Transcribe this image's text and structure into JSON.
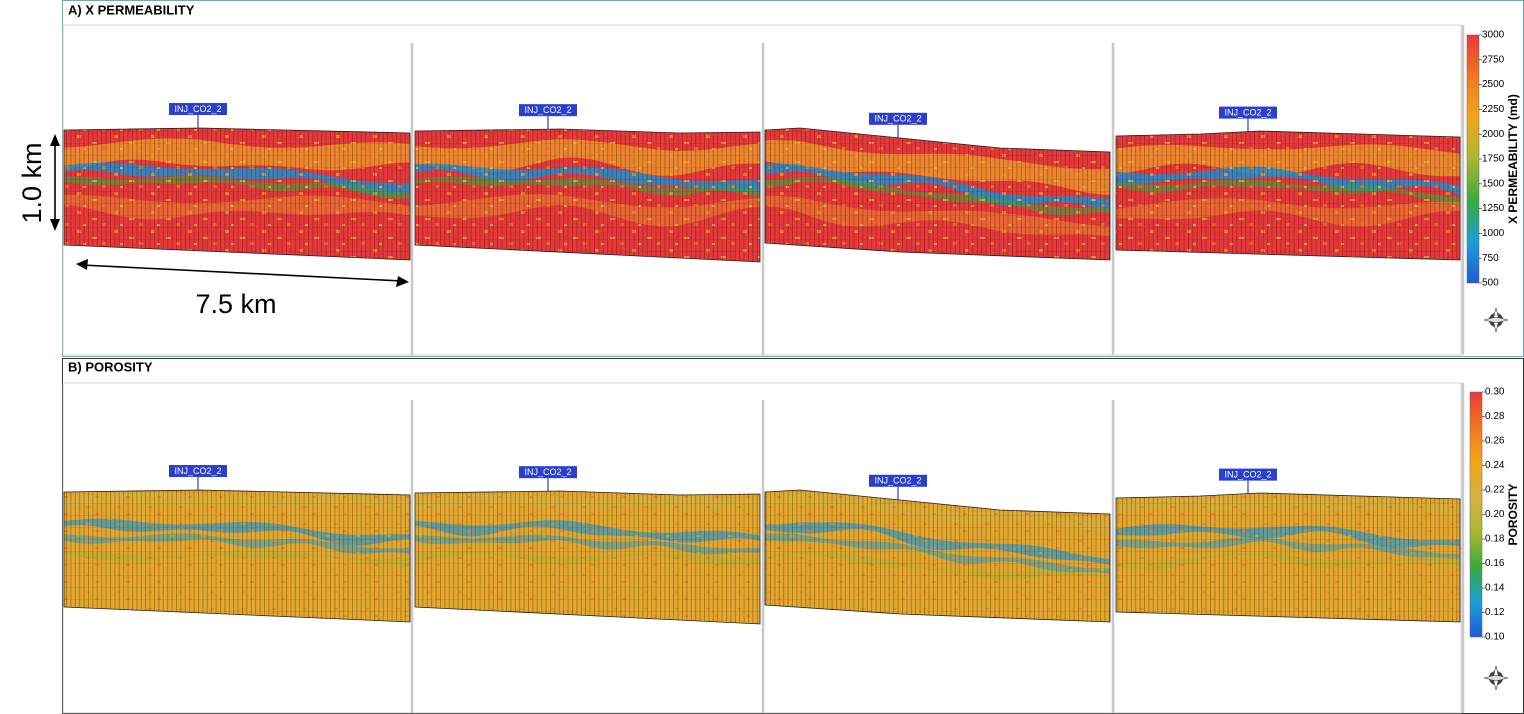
{
  "panels": [
    {
      "title": "A) X PERMEABILITY",
      "well_labels": [
        "INJ_CO2_2",
        "INJ_CO2_2",
        "INJ_CO2_2",
        "INJ_CO2_2"
      ],
      "colorbar": {
        "label": "X PERMEABILITY (md)",
        "ticks": [
          500,
          750,
          1000,
          1250,
          1500,
          1750,
          2000,
          2250,
          2500,
          2750,
          3000
        ],
        "colors": [
          "#1e5bd6",
          "#1aa0d8",
          "#3aaa3c",
          "#a9b830",
          "#f0a818",
          "#f07820",
          "#e8383a"
        ]
      }
    },
    {
      "title": "B) POROSITY",
      "well_labels": [
        "INJ_CO2_2",
        "INJ_CO2_2",
        "INJ_CO2_2",
        "INJ_CO2_2"
      ],
      "colorbar": {
        "label": "POROSITY",
        "ticks": [
          {
            "value": 0.1,
            "label": "0.10"
          },
          0.12,
          0.14,
          0.16,
          0.18,
          {
            "value": 0.2,
            "label": "0.20"
          },
          0.22,
          0.24,
          0.26,
          0.28,
          {
            "value": 0.3,
            "label": "0.30"
          }
        ],
        "colors": [
          "#1e5bd6",
          "#1aa0d8",
          "#3aaa3c",
          "#a9b830",
          "#d8b040",
          "#f0a818",
          "#f07820",
          "#e8383a"
        ]
      }
    }
  ],
  "scale": {
    "vertical": "1.0 km",
    "horizontal": "7.5 km"
  }
}
